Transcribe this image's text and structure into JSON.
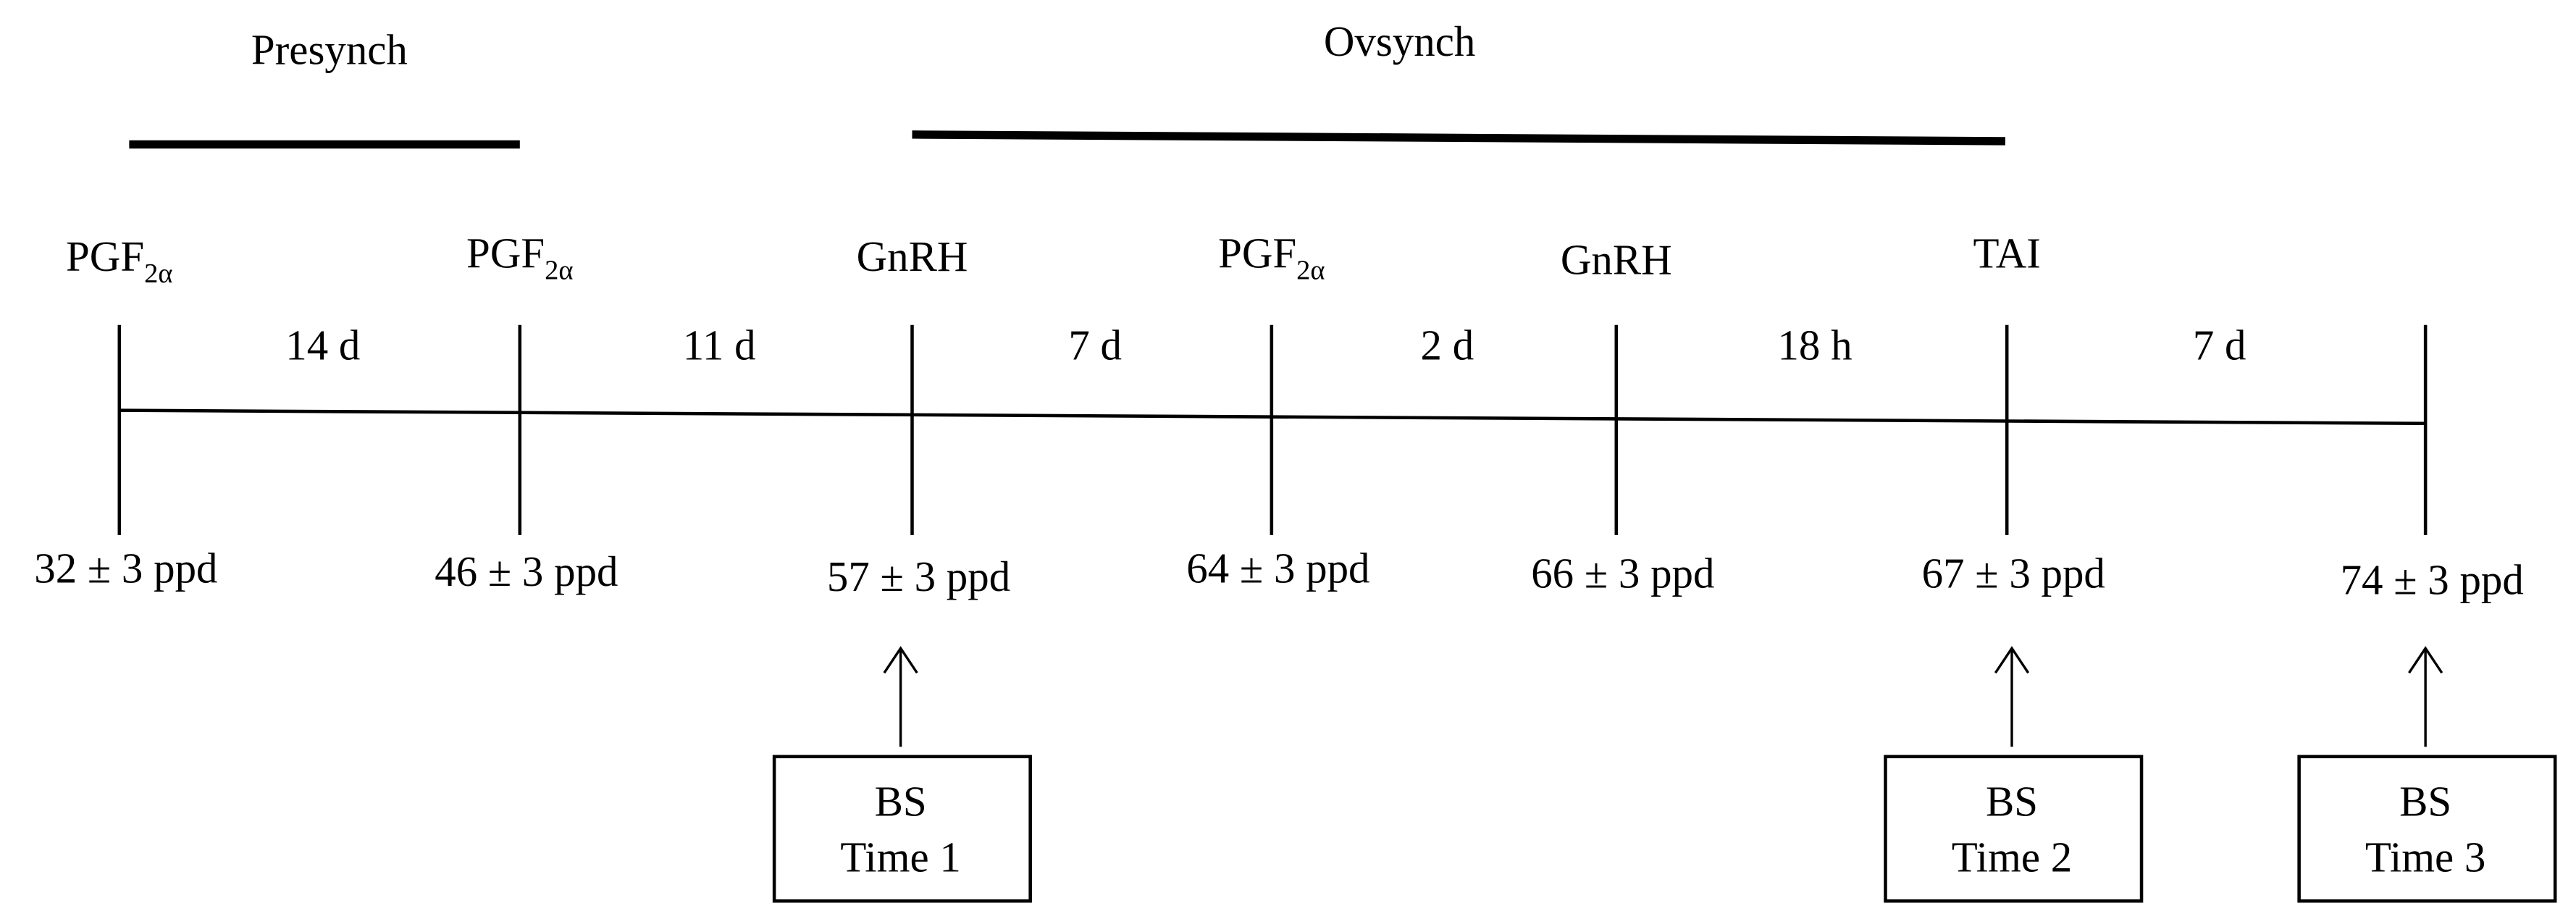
{
  "phases": [
    {
      "label": "Presynch"
    },
    {
      "label": "Ovsynch"
    }
  ],
  "events": [
    {
      "treatment": "PGF",
      "subscript": "2α",
      "day": "32 ± 3 ppd"
    },
    {
      "treatment": "PGF",
      "subscript": "2α",
      "day": "46 ± 3 ppd"
    },
    {
      "treatment": "GnRH",
      "day": "57 ± 3 ppd"
    },
    {
      "treatment": "PGF",
      "subscript": "2α",
      "day": "64 ± 3 ppd"
    },
    {
      "treatment": "GnRH",
      "day": "66 ± 3 ppd"
    },
    {
      "treatment": "TAI",
      "day": "67 ± 3 ppd"
    },
    {
      "day": "74 ± 3 ppd"
    }
  ],
  "intervals": [
    "14 d",
    "11 d",
    "7 d",
    "2 d",
    "18 h",
    "7 d"
  ],
  "samples": [
    {
      "line1": "BS",
      "line2": "Time 1"
    },
    {
      "line1": "BS",
      "line2": "Time 2"
    },
    {
      "line1": "BS",
      "line2": "Time 3"
    }
  ]
}
